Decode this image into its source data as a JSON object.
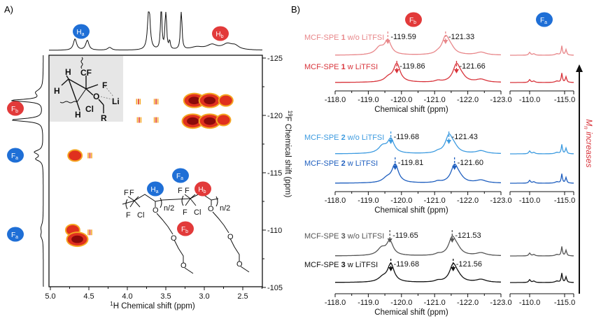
{
  "panel_labels": {
    "a": "A)",
    "b": "B)"
  },
  "colors": {
    "badge_blue": "#1f6fd6",
    "badge_red": "#e23a3a",
    "contour_dark": "#8b0a0a",
    "contour_mid": "#e0301e",
    "contour_light": "#f5a623",
    "arrow": "#111111",
    "mn_text": "#d8343b"
  },
  "badges": {
    "top_ha": {
      "main": "H",
      "sub": "a"
    },
    "top_hb": {
      "main": "H",
      "sub": "b"
    },
    "left_fb": {
      "main": "F",
      "sub": "b"
    },
    "left_fa1": {
      "main": "F",
      "sub": "a"
    },
    "left_fa2": {
      "main": "F",
      "sub": "a"
    },
    "mol_fa": {
      "main": "F",
      "sub": "a"
    },
    "mol_ha": {
      "main": "H",
      "sub": "a"
    },
    "mol_hb": {
      "main": "H",
      "sub": "b"
    },
    "mol_fb": {
      "main": "F",
      "sub": "b"
    },
    "b_fb": {
      "main": "F",
      "sub": "b"
    },
    "b_fa": {
      "main": "F",
      "sub": "a"
    }
  },
  "inset_structure": {
    "atoms": [
      "H",
      "CF",
      "2",
      "F",
      "H",
      "O",
      "Li",
      "Cl",
      "H",
      "R"
    ]
  },
  "polymer_structure": {
    "atoms": [
      "F",
      "F",
      "F",
      "Cl",
      "O",
      "O",
      "O",
      "F",
      "F",
      "F",
      "Cl",
      "O",
      "O",
      "O"
    ],
    "subscripts": [
      "n/2",
      "n/2"
    ]
  },
  "chart_data": [
    {
      "type": "heatmap",
      "subtype": "2D 1H-19F correlation contour plot",
      "xlabel": {
        "sup": "1",
        "text": "H Chemical shift (ppm)"
      },
      "ylabel": {
        "sup": "19",
        "text": "F Chemical shift (ppm)"
      },
      "xlim": [
        5.1,
        2.25
      ],
      "ylim": [
        -125,
        -105
      ],
      "xticks": [
        "5.0",
        "4.5",
        "4.0",
        "3.5",
        "3.0",
        "2.5"
      ],
      "yticks": [
        "-125",
        "-120",
        "-115",
        "-110",
        "-105"
      ],
      "grid": false,
      "cross_peaks": [
        {
          "h": 3.85,
          "f": -121.2,
          "intensity": "weak"
        },
        {
          "h": 3.62,
          "f": -121.2,
          "intensity": "weak"
        },
        {
          "h": 3.84,
          "f": -119.6,
          "intensity": "weak"
        },
        {
          "h": 3.62,
          "f": -119.6,
          "intensity": "weak"
        },
        {
          "h": 3.13,
          "f": -121.3,
          "intensity": "strong"
        },
        {
          "h": 2.93,
          "f": -121.3,
          "intensity": "strong"
        },
        {
          "h": 2.72,
          "f": -121.3,
          "intensity": "medium"
        },
        {
          "h": 3.15,
          "f": -119.5,
          "intensity": "strong"
        },
        {
          "h": 2.93,
          "f": -119.5,
          "intensity": "strong"
        },
        {
          "h": 2.75,
          "f": -119.6,
          "intensity": "medium"
        },
        {
          "h": 4.68,
          "f": -116.5,
          "intensity": "medium"
        },
        {
          "h": 4.48,
          "f": -116.5,
          "intensity": "weak"
        },
        {
          "h": 4.71,
          "f": -110.0,
          "intensity": "medium"
        },
        {
          "h": 4.65,
          "f": -109.2,
          "intensity": "strong"
        },
        {
          "h": 4.48,
          "f": -109.8,
          "intensity": "weak"
        }
      ],
      "projection_1h_peaks_ppm": [
        4.68,
        4.52,
        4.23,
        3.72,
        3.55,
        3.5,
        3.45,
        3.3,
        2.85,
        2.65
      ],
      "projection_19f_peaks_ppm": [
        -122.0,
        -121.3,
        -119.6,
        -116.5,
        -110.0
      ]
    },
    {
      "type": "line",
      "subtype": "stacked 19F NMR spectra",
      "xlabel": "Chemical shift (ppm)",
      "xticks_main": [
        "-118.0",
        "-119.0",
        "-120.0",
        "-121.0",
        "-122.0",
        "-123.0"
      ],
      "xticks_side": [
        "-110.0",
        "-115.0"
      ],
      "xlim_main": [
        -118.0,
        -123.0
      ],
      "xlim_side": [
        -107.2,
        -116.3
      ],
      "trend_label": {
        "main": "M",
        "sub": "n",
        "rest": " increases"
      },
      "groups": [
        {
          "series": [
            {
              "prefix": "MCF-SPE ",
              "num": "1",
              "suffix": " w/o LiTFSI",
              "color": "#e8878a",
              "peaks": [
                -119.59,
                -121.33
              ],
              "peak_labels": [
                "-119.59",
                "-121.33"
              ]
            },
            {
              "prefix": "MCF-SPE ",
              "num": "1",
              "suffix": " w LiTFSI",
              "color": "#d8343b",
              "peaks": [
                -119.86,
                -121.66
              ],
              "peak_labels": [
                "-119.86",
                "-121.66"
              ]
            }
          ]
        },
        {
          "series": [
            {
              "prefix": "MCF-SPE ",
              "num": "2",
              "suffix": " w/o LiTFSI",
              "color": "#3d9be0",
              "peaks": [
                -119.68,
                -121.43
              ],
              "peak_labels": [
                "-119.68",
                "-121.43"
              ]
            },
            {
              "prefix": "MCF-SPE ",
              "num": "2",
              "suffix": " w LiTFSI",
              "color": "#1f5fbf",
              "peaks": [
                -119.81,
                -121.6
              ],
              "peak_labels": [
                "-119.81",
                "-121.60"
              ]
            }
          ]
        },
        {
          "series": [
            {
              "prefix": "MCF-SPE ",
              "num": "3",
              "suffix": " w/o LiTFSI",
              "color": "#555555",
              "peaks": [
                -119.65,
                -121.53
              ],
              "peak_labels": [
                "-119.65",
                "-121.53"
              ]
            },
            {
              "prefix": "MCF-SPE ",
              "num": "3",
              "suffix": " w LiTFSI",
              "color": "#111111",
              "peaks": [
                -119.68,
                -121.56
              ],
              "peak_labels": [
                "-119.68",
                "-121.56"
              ]
            }
          ]
        }
      ]
    }
  ]
}
